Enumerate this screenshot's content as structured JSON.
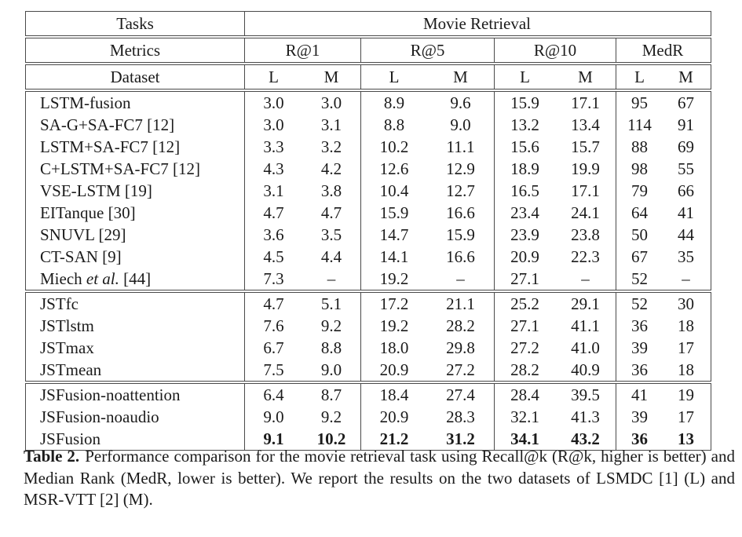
{
  "table": {
    "header": {
      "tasks_label": "Tasks",
      "tasks_value": "Movie Retrieval",
      "metrics_label": "Metrics",
      "metric_groups": [
        "R@1",
        "R@5",
        "R@10",
        "MedR"
      ],
      "dataset_label": "Dataset",
      "dataset_cols": [
        "L",
        "M",
        "L",
        "M",
        "L",
        "M",
        "L",
        "M"
      ]
    },
    "groups": [
      {
        "name": "baselines",
        "rows": [
          {
            "label": "LSTM-fusion",
            "values": [
              "3.0",
              "3.0",
              "8.9",
              "9.6",
              "15.9",
              "17.1",
              "95",
              "67"
            ]
          },
          {
            "label": "SA-G+SA-FC7 [12]",
            "values": [
              "3.0",
              "3.1",
              "8.8",
              "9.0",
              "13.2",
              "13.4",
              "114",
              "91"
            ]
          },
          {
            "label": "LSTM+SA-FC7 [12]",
            "values": [
              "3.3",
              "3.2",
              "10.2",
              "11.1",
              "15.6",
              "15.7",
              "88",
              "69"
            ]
          },
          {
            "label": "C+LSTM+SA-FC7 [12]",
            "values": [
              "4.3",
              "4.2",
              "12.6",
              "12.9",
              "18.9",
              "19.9",
              "98",
              "55"
            ]
          },
          {
            "label": "VSE-LSTM [19]",
            "values": [
              "3.1",
              "3.8",
              "10.4",
              "12.7",
              "16.5",
              "17.1",
              "79",
              "66"
            ]
          },
          {
            "label": "EITanque [30]",
            "values": [
              "4.7",
              "4.7",
              "15.9",
              "16.6",
              "23.4",
              "24.1",
              "64",
              "41"
            ]
          },
          {
            "label": "SNUVL [29]",
            "values": [
              "3.6",
              "3.5",
              "14.7",
              "15.9",
              "23.9",
              "23.8",
              "50",
              "44"
            ]
          },
          {
            "label": "CT-SAN [9]",
            "values": [
              "4.5",
              "4.4",
              "14.1",
              "16.6",
              "20.9",
              "22.3",
              "67",
              "35"
            ]
          },
          {
            "label": "Miech et al. [44]",
            "parts": [
              {
                "text": "Miech "
              },
              {
                "italic": "et al."
              },
              {
                "text": " [44]"
              }
            ],
            "values": [
              "7.3",
              "–",
              "19.2",
              "–",
              "27.1",
              "–",
              "52",
              "–"
            ]
          }
        ]
      },
      {
        "name": "jst-variants",
        "rows": [
          {
            "label": "JSTfc",
            "values": [
              "4.7",
              "5.1",
              "17.2",
              "21.1",
              "25.2",
              "29.1",
              "52",
              "30"
            ]
          },
          {
            "label": "JSTlstm",
            "values": [
              "7.6",
              "9.2",
              "19.2",
              "28.2",
              "27.1",
              "41.1",
              "36",
              "18"
            ]
          },
          {
            "label": "JSTmax",
            "values": [
              "6.7",
              "8.8",
              "18.0",
              "29.8",
              "27.2",
              "41.0",
              "39",
              "17"
            ]
          },
          {
            "label": "JSTmean",
            "values": [
              "7.5",
              "9.0",
              "20.9",
              "27.2",
              "28.2",
              "40.9",
              "36",
              "18"
            ]
          }
        ]
      },
      {
        "name": "jsfusion-variants",
        "rows": [
          {
            "label": "JSFusion-noattention",
            "values": [
              "6.4",
              "8.7",
              "18.4",
              "27.4",
              "28.4",
              "39.5",
              "41",
              "19"
            ]
          },
          {
            "label": "JSFusion-noaudio",
            "values": [
              "9.0",
              "9.2",
              "20.9",
              "28.3",
              "32.1",
              "41.3",
              "39",
              "17"
            ]
          },
          {
            "label": "JSFusion",
            "bold": true,
            "values": [
              "9.1",
              "10.2",
              "21.2",
              "31.2",
              "34.1",
              "43.2",
              "36",
              "13"
            ]
          }
        ]
      }
    ]
  },
  "caption": {
    "label": "Table 2.",
    "text": "Performance comparison for the movie retrieval task using Recall@k (R@k, higher is better) and Median Rank (MedR, lower is better). We report the results on the two datasets of LSMDC [1] (L) and MSR-VTT [2] (M)."
  }
}
